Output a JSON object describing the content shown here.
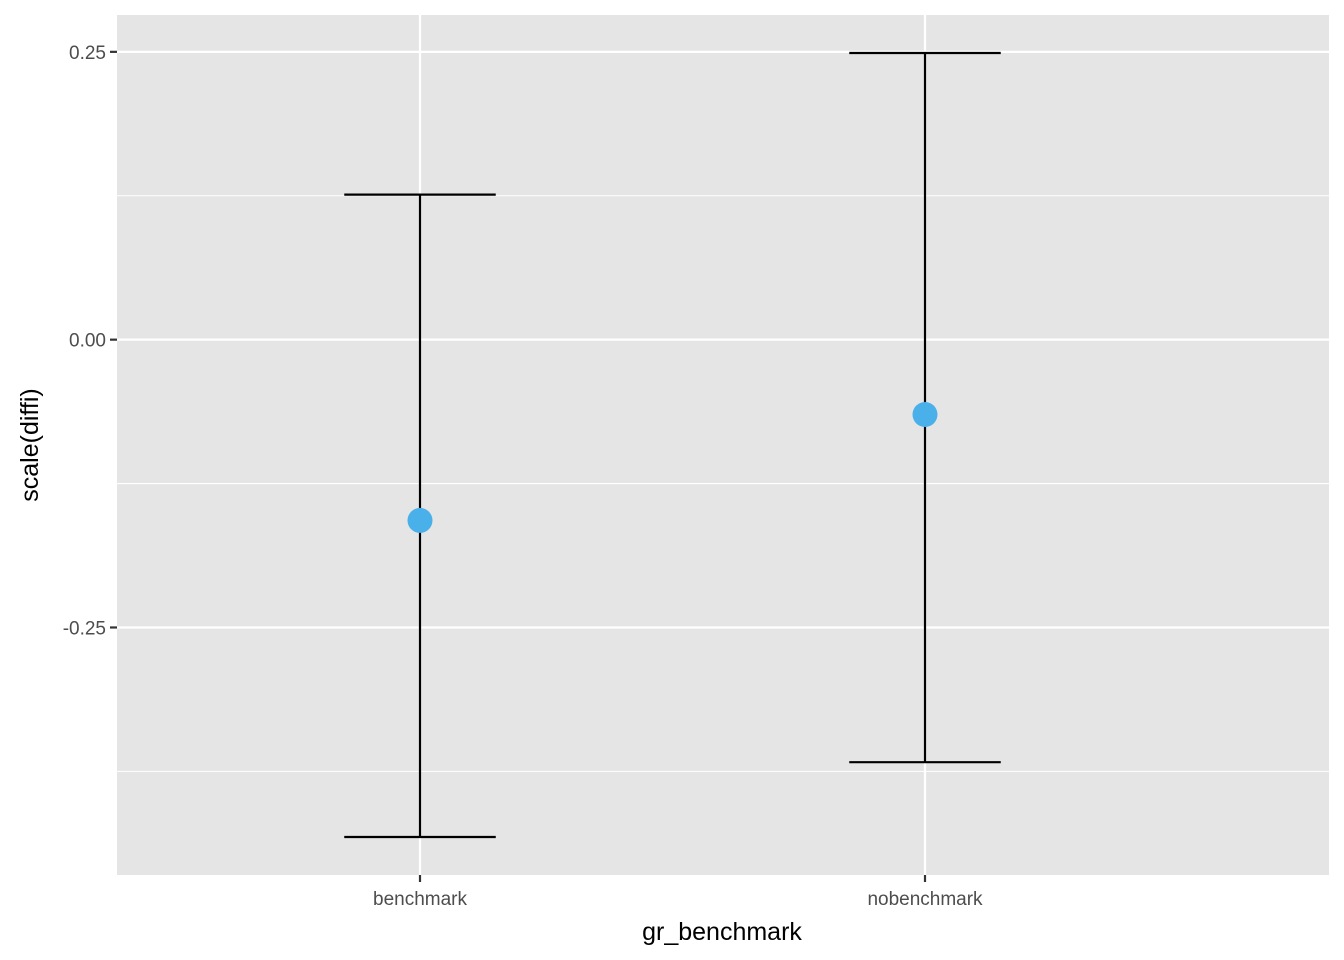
{
  "chart_data": {
    "type": "errorbar",
    "xlabel": "gr_benchmark",
    "ylabel": "scale(diffi)",
    "categories": [
      "benchmark",
      "nobenchmark"
    ],
    "series": [
      {
        "values": [
          -0.157,
          -0.065
        ],
        "lower": [
          -0.432,
          -0.367
        ],
        "upper": [
          0.126,
          0.249
        ]
      }
    ],
    "ylim": [
      -0.465,
      0.282
    ],
    "y_ticks": [
      -0.25,
      0.0,
      0.25
    ],
    "y_tick_labels": [
      "-0.25",
      "0.00",
      "0.25"
    ],
    "grid": true,
    "point_color": "#4AB0EA",
    "errorbar_color": "#000000",
    "panel_color": "#E5E5E5",
    "grid_color": "#FFFFFF"
  }
}
